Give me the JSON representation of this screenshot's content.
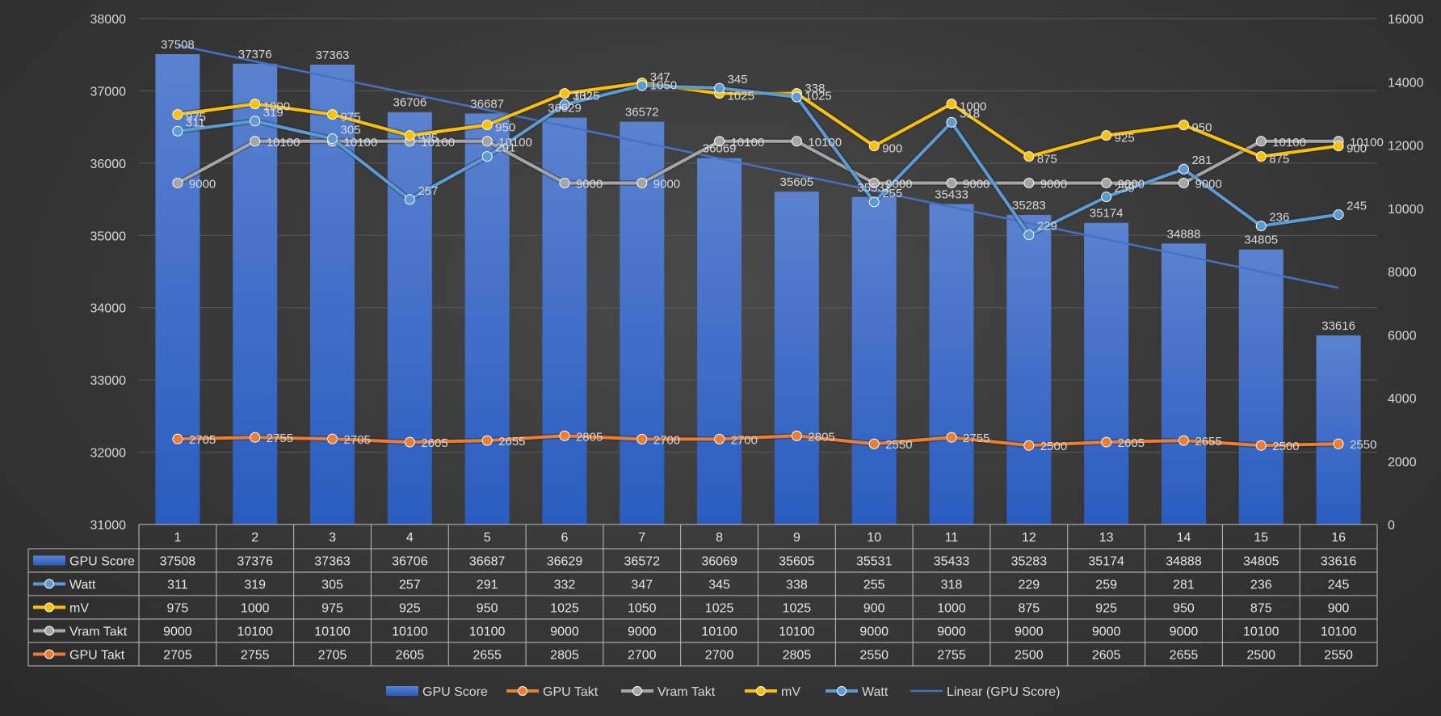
{
  "chart_data": {
    "type": "bar",
    "categories": [
      "1",
      "2",
      "3",
      "4",
      "5",
      "6",
      "7",
      "8",
      "9",
      "10",
      "11",
      "12",
      "13",
      "14",
      "15",
      "16"
    ],
    "ylim_left": [
      31000,
      38000
    ],
    "yticks_left": [
      31000,
      32000,
      33000,
      34000,
      35000,
      36000,
      37000,
      38000
    ],
    "ylim_right": [
      0,
      16000
    ],
    "yticks_right": [
      0,
      2000,
      4000,
      6000,
      8000,
      10000,
      12000,
      14000,
      16000
    ],
    "grid": true,
    "legend_position": "bottom",
    "series": [
      {
        "name": "GPU Score",
        "type": "bar",
        "axis": "left",
        "color": "#4472c4",
        "values": [
          37508,
          37376,
          37363,
          36706,
          36687,
          36629,
          36572,
          36069,
          35605,
          35531,
          35433,
          35283,
          35174,
          34888,
          34805,
          33616
        ]
      },
      {
        "name": "Watt",
        "type": "line",
        "axis": "right",
        "color": "#5b9bd5",
        "scale": 40,
        "values": [
          311,
          319,
          305,
          257,
          291,
          332,
          347,
          345,
          338,
          255,
          318,
          229,
          259,
          281,
          236,
          245
        ]
      },
      {
        "name": "mV",
        "type": "line",
        "axis": "right",
        "color": "#ffc000",
        "scale": 13.3,
        "values": [
          975,
          1000,
          975,
          925,
          950,
          1025,
          1050,
          1025,
          1025,
          900,
          1000,
          875,
          925,
          950,
          875,
          900
        ]
      },
      {
        "name": "Vram Takt",
        "type": "line",
        "axis": "right",
        "color": "#a5a5a5",
        "scale": 1.2,
        "values": [
          9000,
          10100,
          10100,
          10100,
          10100,
          9000,
          9000,
          10100,
          10100,
          9000,
          9000,
          9000,
          9000,
          9000,
          10100,
          10100
        ]
      },
      {
        "name": "GPU Takt",
        "type": "line",
        "axis": "right",
        "color": "#ed7d31",
        "scale": 1,
        "values": [
          2705,
          2755,
          2705,
          2605,
          2655,
          2805,
          2700,
          2700,
          2805,
          2550,
          2755,
          2500,
          2605,
          2655,
          2500,
          2550
        ]
      }
    ],
    "trendline": {
      "name": "Linear (GPU Score)",
      "color": "#4472c4"
    },
    "table_rows": [
      "GPU Score",
      "Watt",
      "mV",
      "Vram Takt",
      "GPU Takt"
    ],
    "legend_order": [
      "GPU Score",
      "GPU Takt",
      "Vram Takt",
      "mV",
      "Watt",
      "Linear (GPU Score)"
    ]
  }
}
